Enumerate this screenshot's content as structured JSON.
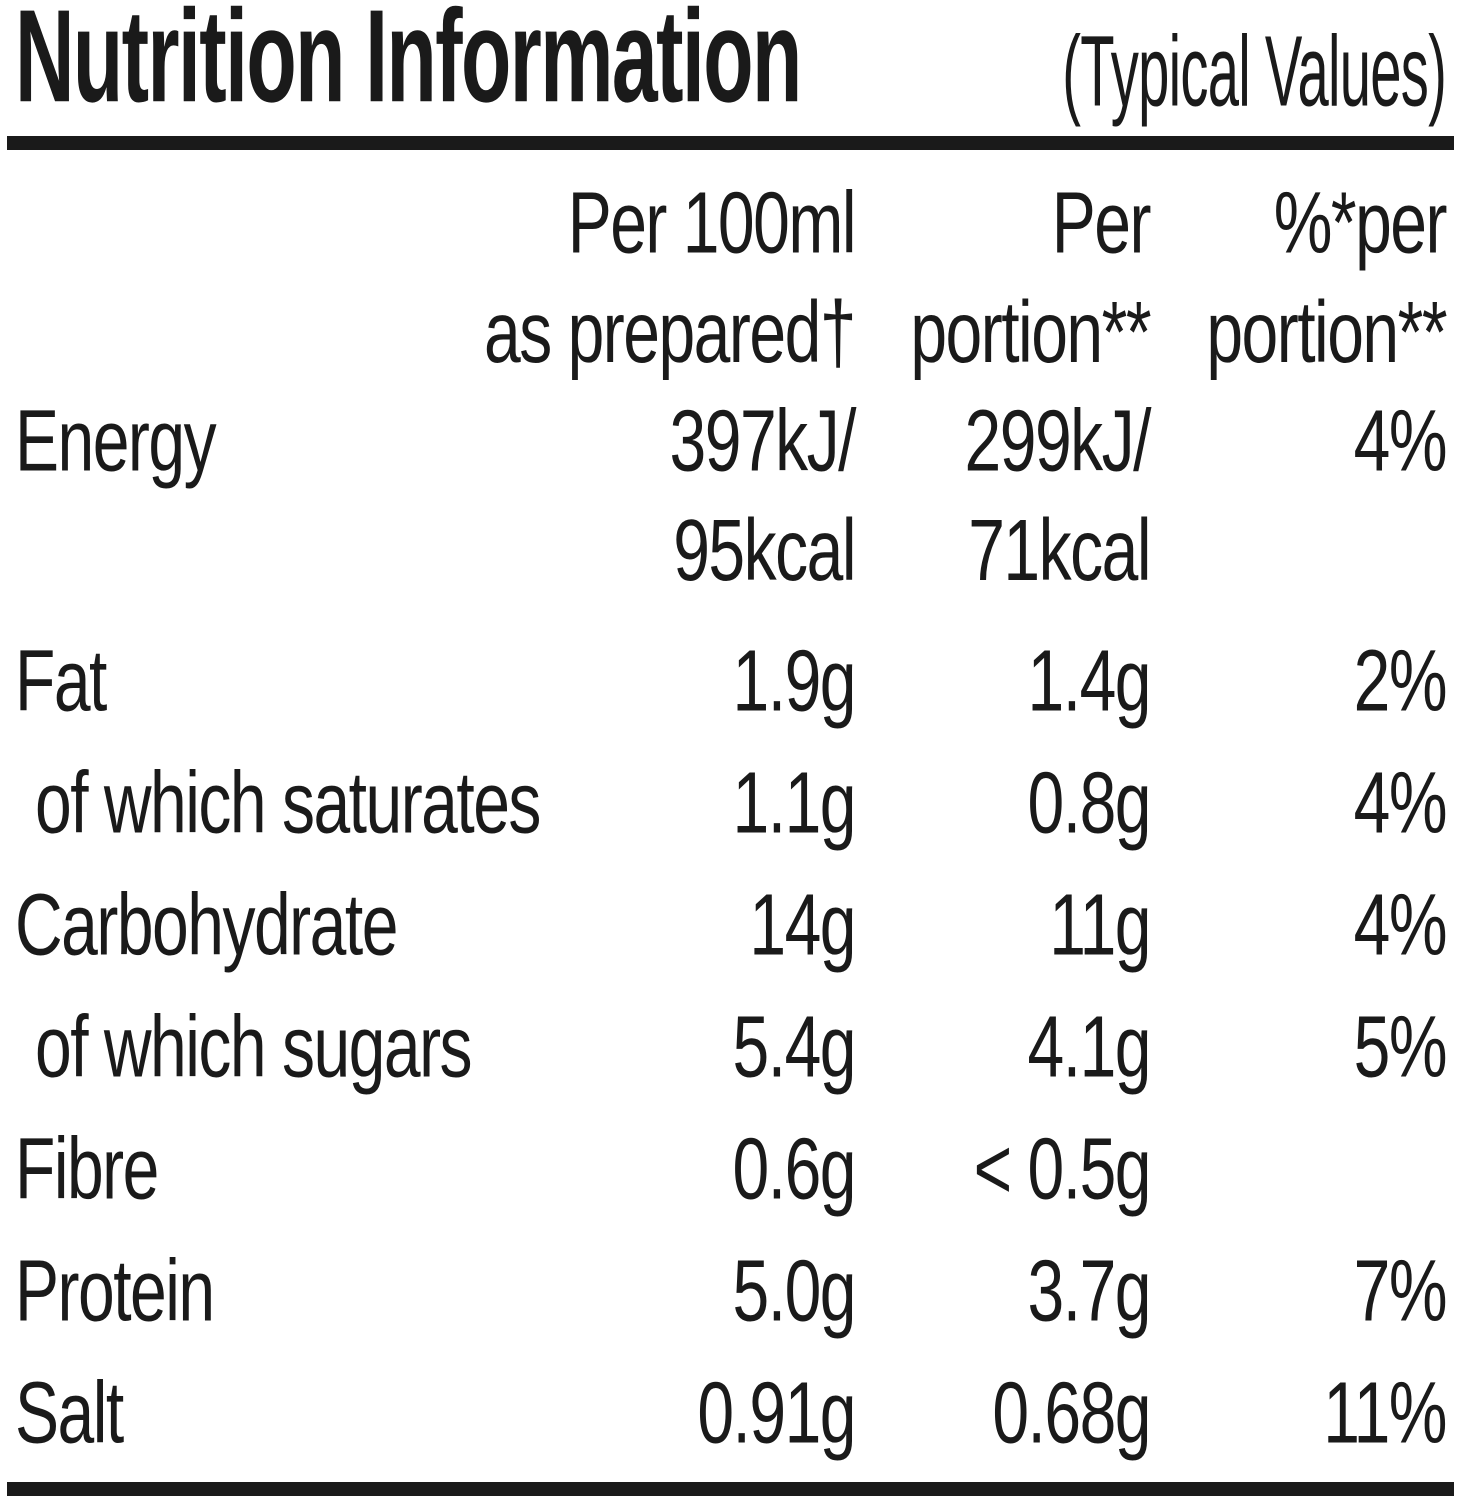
{
  "title": {
    "main": "Nutrition Information",
    "sub": "(Typical Values)"
  },
  "columns": {
    "per100": "Per 100ml\nas prepared†",
    "portion": "Per\nportion**",
    "pct": "%*per\nportion**"
  },
  "rows": [
    {
      "label": "Energy",
      "per100": "397kJ/\n95kcal",
      "portion": "299kJ/\n71kcal",
      "pct": "4%"
    },
    {
      "label": "Fat",
      "per100": "1.9g",
      "portion": "1.4g",
      "pct": "2%"
    },
    {
      "label": "of which saturates",
      "per100": "1.1g",
      "portion": "0.8g",
      "pct": "4%"
    },
    {
      "label": "Carbohydrate",
      "per100": "14g",
      "portion": "11g",
      "pct": "4%"
    },
    {
      "label": "of which sugars",
      "per100": "5.4g",
      "portion": "4.1g",
      "pct": "5%"
    },
    {
      "label": "Fibre",
      "per100": "0.6g",
      "portion": "< 0.5g",
      "pct": ""
    },
    {
      "label": "Protein",
      "per100": "5.0g",
      "portion": "3.7g",
      "pct": "7%"
    },
    {
      "label": "Salt",
      "per100": "0.91g",
      "portion": "0.68g",
      "pct": "11%"
    }
  ],
  "colors": {
    "ink": "#1a1a1a",
    "background": "#ffffff"
  }
}
